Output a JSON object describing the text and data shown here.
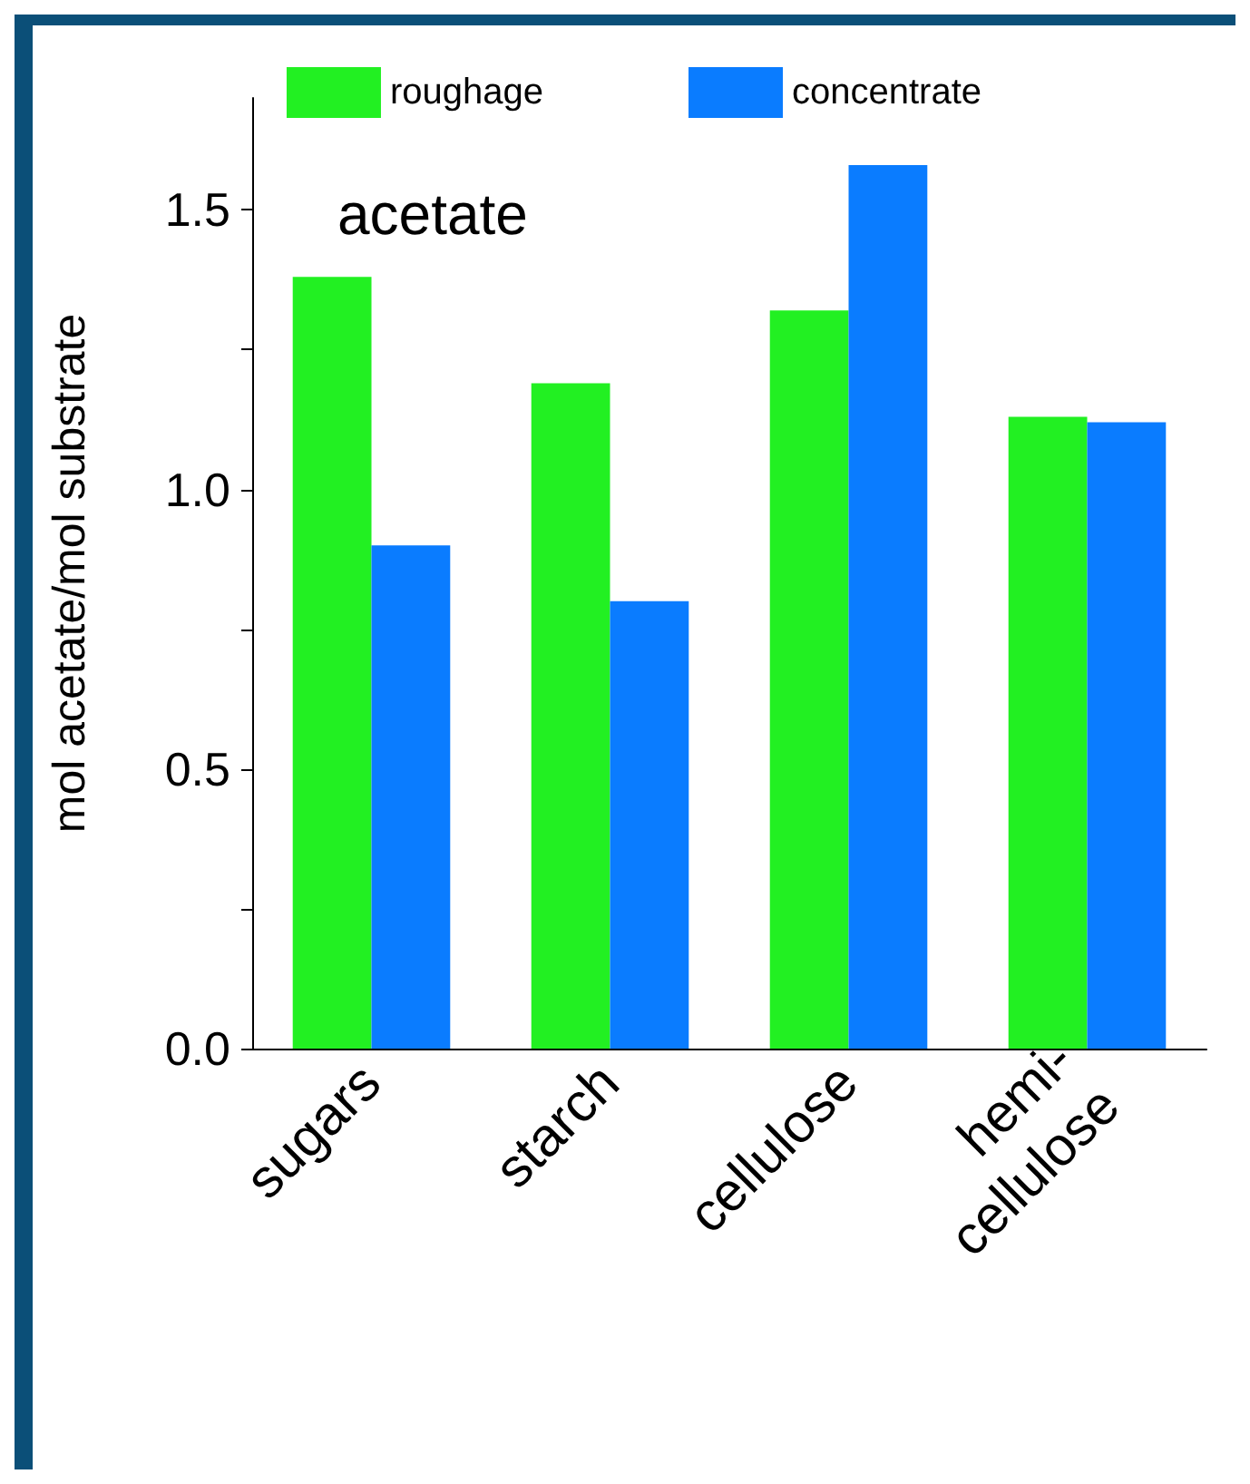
{
  "chart_data": {
    "type": "bar",
    "ylabel": "mol acetate/mol substrate",
    "categories": [
      "sugars",
      "starch",
      "cellulose",
      "hemi-\ncellulose"
    ],
    "series": [
      {
        "name": "roughage",
        "color": "#22f022",
        "values": [
          1.38,
          1.19,
          1.32,
          1.13
        ]
      },
      {
        "name": "concentrate",
        "color": "#0a7cff",
        "values": [
          0.9,
          0.8,
          1.58,
          1.12
        ]
      }
    ],
    "ylim": [
      0,
      1.7
    ],
    "yticks": [
      {
        "value": 0,
        "label": "0.0"
      },
      {
        "value": 0.25,
        "label": null
      },
      0.5,
      {
        "value": 0.75,
        "label": null
      },
      {
        "value": 1,
        "label": "1.0"
      },
      {
        "value": 1.25,
        "label": null
      },
      1.5
    ],
    "annotations": [
      "acetate"
    ],
    "legend": "top",
    "grid": false
  }
}
